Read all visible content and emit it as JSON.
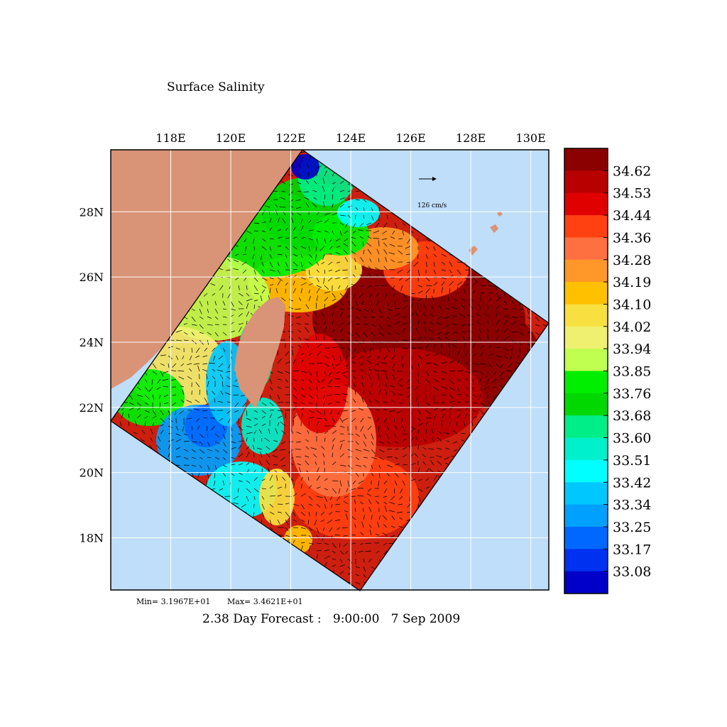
{
  "title": "Surface Salinity",
  "map": {
    "lon_ticks": [
      "118E",
      "120E",
      "122E",
      "124E",
      "126E",
      "128E",
      "130E"
    ],
    "lat_ticks": [
      "28N",
      "26N",
      "24N",
      "22N",
      "20N",
      "18N"
    ],
    "lon_range": [
      116,
      130.6
    ],
    "lat_range": [
      16.4,
      29.9
    ],
    "grid": true
  },
  "vector_scale": {
    "label": "126 cm/s"
  },
  "stats": {
    "min": "Min= 3.1967E+01",
    "max": "Max= 3.4621E+01"
  },
  "forecast": {
    "lead": "2.38 Day Forecast :",
    "time": "9:00:00",
    "date": "7 Sep 2009"
  },
  "colors": {
    "land": "#d99377",
    "ocean": "#bfdefa",
    "high_salinity": "#cc1f0f"
  },
  "colorbar": {
    "labels": [
      "34.62",
      "34.53",
      "34.44",
      "34.36",
      "34.28",
      "34.19",
      "34.10",
      "34.02",
      "33.94",
      "33.85",
      "33.76",
      "33.68",
      "33.60",
      "33.51",
      "33.42",
      "33.34",
      "33.25",
      "33.17",
      "33.08"
    ],
    "colors": [
      "#8b0000",
      "#b70000",
      "#e00000",
      "#ff4010",
      "#ff7040",
      "#ff9828",
      "#ffc000",
      "#f8e040",
      "#f0f070",
      "#c0ff50",
      "#00ee00",
      "#00d800",
      "#00ee88",
      "#00f0cc",
      "#00ffff",
      "#00c8ff",
      "#00a0ff",
      "#0068ff",
      "#0030f0",
      "#0000c8"
    ]
  }
}
